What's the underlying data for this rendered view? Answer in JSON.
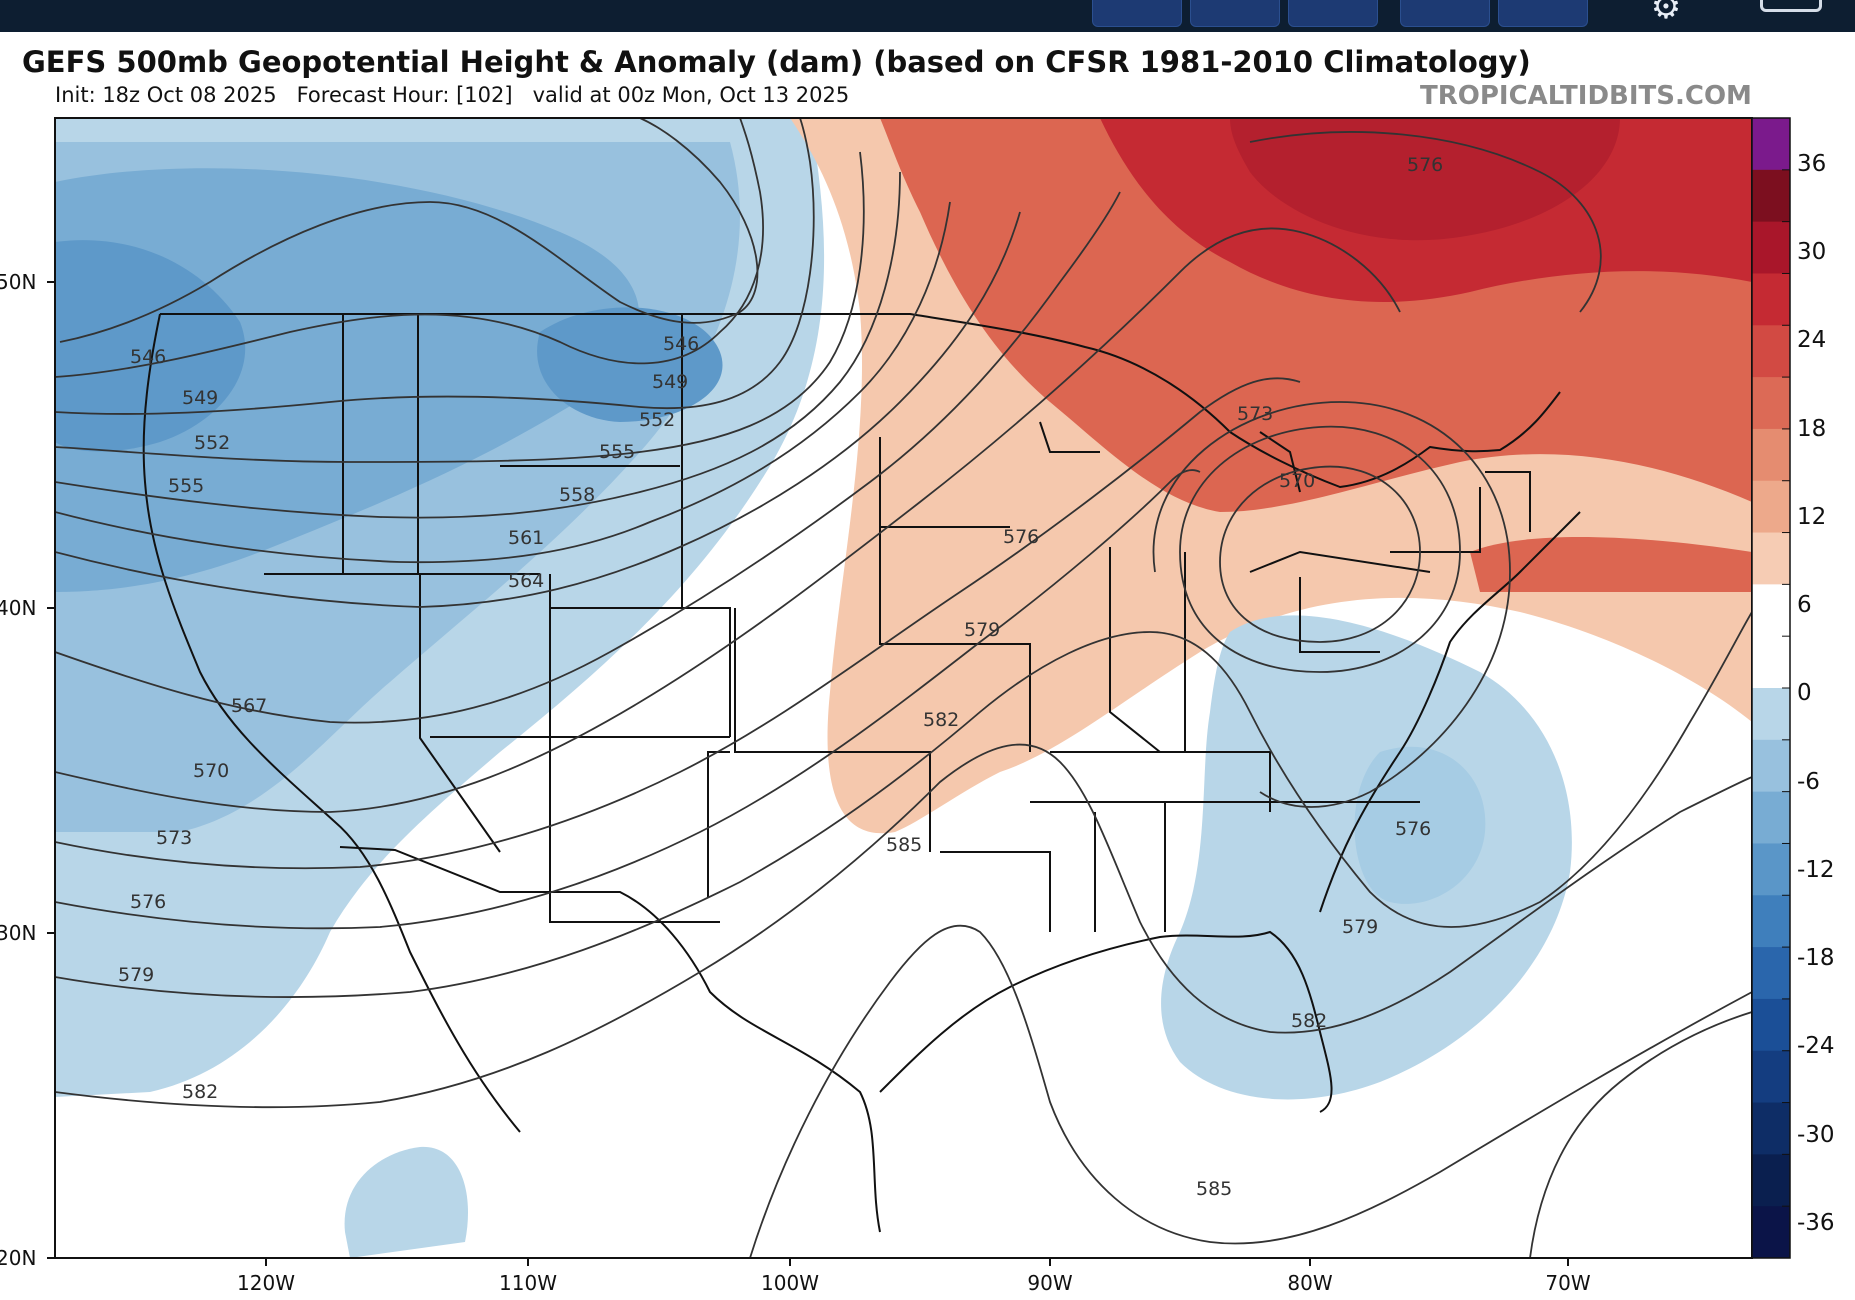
{
  "header_buttons": [
    {
      "label": ""
    },
    {
      "label": ""
    },
    {
      "label": ""
    },
    {
      "label": ""
    },
    {
      "label": ""
    }
  ],
  "icons": {
    "settings": "gear-icon",
    "panel": "panel-toggle-icon"
  },
  "map": {
    "title": "GEFS 500mb Geopotential Height & Anomaly (dam) (based on CFSR 1981-2010 Climatology)",
    "subtitle": "Init: 18z Oct 08 2025   Forecast Hour: [102]   valid at 00z Mon, Oct 13 2025",
    "watermark": "TROPICALTIDBITS.COM",
    "latitude_labels": [
      "50N",
      "40N",
      "30N",
      "20N"
    ],
    "longitude_labels": [
      "120W",
      "110W",
      "100W",
      "90W",
      "80W",
      "70W"
    ],
    "contour_labels": [
      "546",
      "546",
      "549",
      "549",
      "552",
      "552",
      "555",
      "555",
      "558",
      "561",
      "564",
      "567",
      "570",
      "570",
      "573",
      "573",
      "576",
      "576",
      "576",
      "576",
      "579",
      "579",
      "579",
      "582",
      "582",
      "582",
      "585",
      "585"
    ],
    "colorbar": {
      "tick_labels": [
        "36",
        "30",
        "24",
        "18",
        "12",
        "6",
        "0",
        "-6",
        "-12",
        "-18",
        "-24",
        "-30",
        "-36"
      ],
      "colors": [
        "#7b1a8c",
        "#7c0f1f",
        "#a9162a",
        "#c52a33",
        "#d24a43",
        "#dc6a56",
        "#e58c70",
        "#eda98b",
        "#f6ccb4",
        "#ffffff",
        "#ffffff",
        "#b8d6e8",
        "#98c1de",
        "#78acd3",
        "#5a96c8",
        "#3f7fbc",
        "#2a66ac",
        "#1b4f97",
        "#143d80",
        "#0e2d66",
        "#0a1f4f",
        "#0b1448"
      ]
    },
    "colors": {
      "strong_positive": "#b4202e",
      "positive": "#dc6651",
      "weak_positive": "#f5c8ad",
      "neutral": "#ffffff",
      "weak_negative": "#b8d6e8",
      "negative": "#8fbcdc",
      "strong_negative": "#5e99c9"
    }
  }
}
